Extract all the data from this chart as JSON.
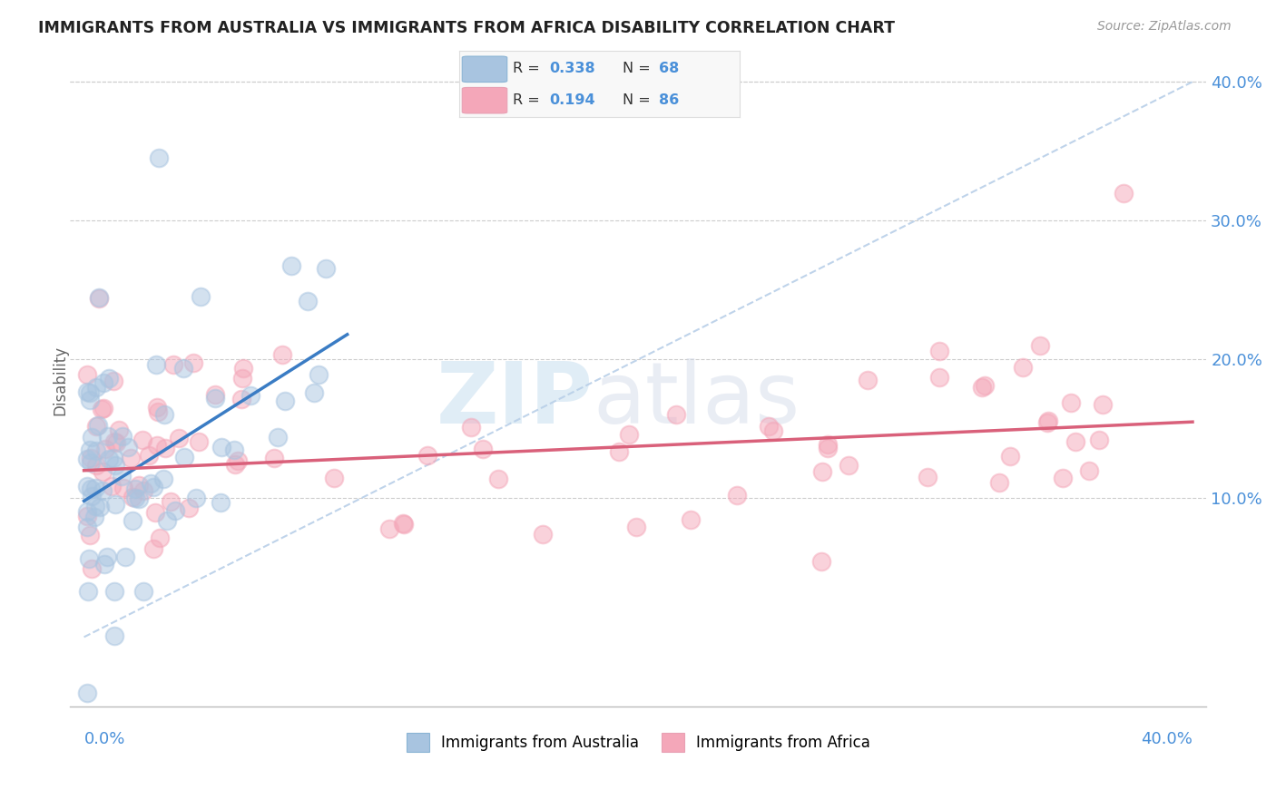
{
  "title": "IMMIGRANTS FROM AUSTRALIA VS IMMIGRANTS FROM AFRICA DISABILITY CORRELATION CHART",
  "source": "Source: ZipAtlas.com",
  "ylabel": "Disability",
  "y_ticks": [
    0.1,
    0.2,
    0.3,
    0.4
  ],
  "y_tick_labels": [
    "10.0%",
    "20.0%",
    "30.0%",
    "40.0%"
  ],
  "color_australia": "#a8c4e0",
  "color_africa": "#f4a7b9",
  "trendline_australia": "#3a7cc4",
  "trendline_africa": "#d9607a",
  "trendline_dashed": "#b8cfe8",
  "label_australia": "Immigrants from Australia",
  "label_africa": "Immigrants from Africa",
  "aus_r": 0.338,
  "aus_n": 68,
  "afr_r": 0.194,
  "afr_n": 86,
  "aus_trendline_x0": 0.0,
  "aus_trendline_y0": 0.098,
  "aus_trendline_x1": 0.095,
  "aus_trendline_y1": 0.218,
  "afr_trendline_x0": 0.0,
  "afr_trendline_y0": 0.12,
  "afr_trendline_x1": 0.4,
  "afr_trendline_y1": 0.155,
  "xlim": [
    0.0,
    0.4
  ],
  "ylim": [
    -0.05,
    0.42
  ]
}
